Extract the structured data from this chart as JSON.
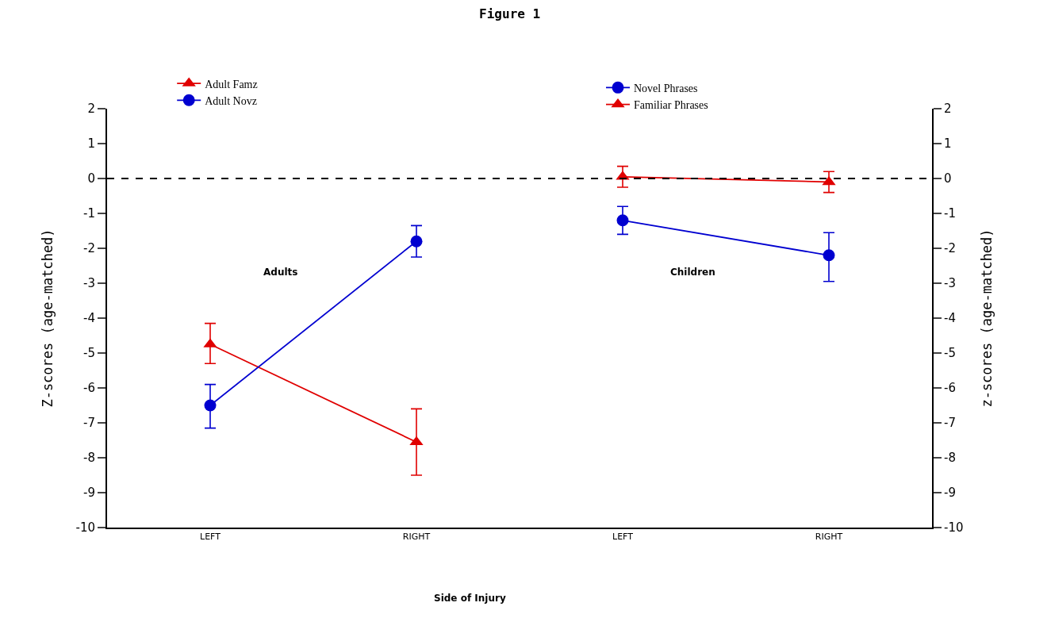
{
  "chart_data": [
    {
      "type": "line",
      "title": "Figure 1",
      "xlabel": "Side of Injury",
      "ylabel": "Z-scores (age-matched)",
      "categories": [
        "LEFT",
        "RIGHT"
      ],
      "ylim": [
        -10,
        2
      ],
      "yticks": [
        -10,
        -9,
        -8,
        -7,
        -6,
        -5,
        -4,
        -3,
        -2,
        -1,
        0,
        1,
        2
      ],
      "legend": "top left",
      "annotations": [
        "Adults"
      ],
      "ref_lines": [
        {
          "axis": "y",
          "value": 0,
          "color": "#000000",
          "line_style": "dashed"
        }
      ],
      "series": [
        {
          "name": "Adult Famz",
          "color": "#e00000",
          "marker": "triangle",
          "values": [
            -4.75,
            -7.55
          ],
          "errors": [
            [
              -5.3,
              -4.15
            ],
            [
              -8.5,
              -6.6
            ]
          ]
        },
        {
          "name": "Adult Novz",
          "color": "#0000d0",
          "marker": "circle",
          "values": [
            -6.5,
            -1.8
          ],
          "errors": [
            [
              -7.15,
              -5.9
            ],
            [
              -2.25,
              -1.35
            ]
          ]
        }
      ]
    },
    {
      "type": "line",
      "y2label": "z-scores (age-matched)",
      "categories": [
        "LEFT",
        "RIGHT"
      ],
      "y2lim": [
        -10,
        2
      ],
      "y2ticks": [
        -10,
        -9,
        -8,
        -7,
        -6,
        -5,
        -4,
        -3,
        -2,
        -1,
        0,
        1,
        2
      ],
      "legend": "top",
      "annotations": [
        "Children"
      ],
      "ref_lines": [
        {
          "axis": "y2",
          "value": 0,
          "color": "#000000",
          "line_style": "dashed"
        }
      ],
      "series": [
        {
          "name": "Novel Phrases",
          "color": "#0000d0",
          "marker": "circle",
          "axis": "y2",
          "values": [
            -1.2,
            -2.2
          ],
          "errors": [
            [
              -1.6,
              -0.8
            ],
            [
              -2.95,
              -1.55
            ]
          ]
        },
        {
          "name": "Familiar Phrases",
          "color": "#e00000",
          "marker": "triangle",
          "axis": "y2",
          "values": [
            0.05,
            -0.1
          ],
          "errors": [
            [
              -0.25,
              0.35
            ],
            [
              -0.4,
              0.2
            ]
          ]
        }
      ]
    }
  ]
}
